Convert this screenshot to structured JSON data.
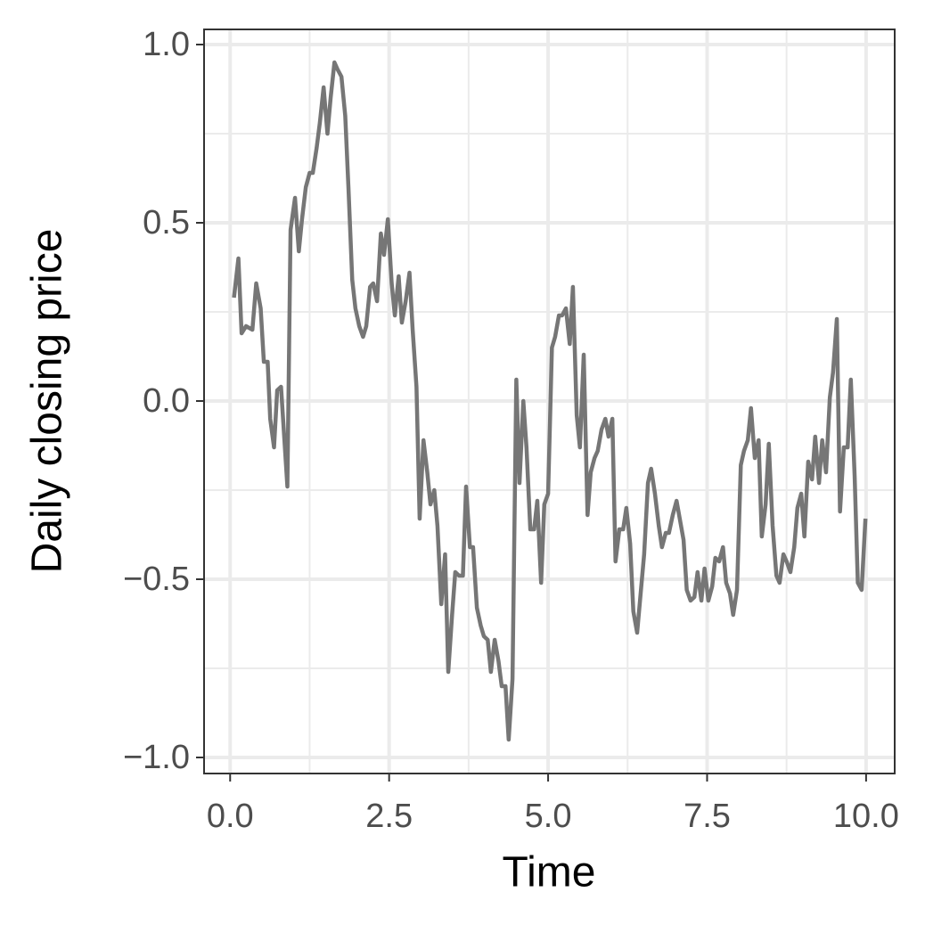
{
  "chart_data": {
    "type": "line",
    "x_label": "Time",
    "y_label": "Daily closing price",
    "color": "#767676",
    "grid": true,
    "minor_grid": true,
    "xlim": [
      -0.41,
      10.45
    ],
    "ylim": [
      -1.045,
      1.0425
    ],
    "xticks": [
      {
        "value": 0,
        "label": "0.0"
      },
      {
        "value": 2.5,
        "label": "2.5"
      },
      {
        "value": 5,
        "label": "5.0"
      },
      {
        "value": 7.5,
        "label": "7.5"
      },
      {
        "value": 10,
        "label": "10.0"
      }
    ],
    "yticks": [
      {
        "value": -1,
        "label": "−1.0"
      },
      {
        "value": -0.5,
        "label": "−0.5"
      },
      {
        "value": 0,
        "label": "0.0"
      },
      {
        "value": 0.5,
        "label": "0.5"
      },
      {
        "value": 1,
        "label": "1.0"
      }
    ],
    "x": [
      0.06,
      0.13,
      0.18,
      0.25,
      0.35,
      0.41,
      0.48,
      0.53,
      0.59,
      0.63,
      0.69,
      0.74,
      0.8,
      0.9,
      0.95,
      1.02,
      1.08,
      1.13,
      1.19,
      1.25,
      1.3,
      1.36,
      1.41,
      1.47,
      1.53,
      1.58,
      1.64,
      1.69,
      1.75,
      1.81,
      1.86,
      1.92,
      1.97,
      2.03,
      2.09,
      2.14,
      2.2,
      2.25,
      2.31,
      2.37,
      2.42,
      2.48,
      2.54,
      2.59,
      2.65,
      2.7,
      2.76,
      2.82,
      2.87,
      2.93,
      2.98,
      3.04,
      3.1,
      3.15,
      3.21,
      3.26,
      3.32,
      3.38,
      3.43,
      3.49,
      3.54,
      3.6,
      3.66,
      3.71,
      3.77,
      3.82,
      3.88,
      3.94,
      3.99,
      4.05,
      4.1,
      4.16,
      4.22,
      4.27,
      4.33,
      4.38,
      4.44,
      4.5,
      4.55,
      4.61,
      4.66,
      4.72,
      4.78,
      4.83,
      4.89,
      4.94,
      5.0,
      5.06,
      5.11,
      5.17,
      5.22,
      5.28,
      5.34,
      5.39,
      5.45,
      5.5,
      5.56,
      5.62,
      5.67,
      5.73,
      5.78,
      5.84,
      5.9,
      5.95,
      6.01,
      6.06,
      6.12,
      6.18,
      6.23,
      6.29,
      6.34,
      6.4,
      6.46,
      6.51,
      6.57,
      6.62,
      6.68,
      6.74,
      6.79,
      6.85,
      6.9,
      6.96,
      7.02,
      7.07,
      7.13,
      7.18,
      7.24,
      7.3,
      7.35,
      7.41,
      7.46,
      7.52,
      7.58,
      7.63,
      7.69,
      7.75,
      7.8,
      7.86,
      7.91,
      7.97,
      8.03,
      8.08,
      8.14,
      8.19,
      8.25,
      8.31,
      8.36,
      8.42,
      8.47,
      8.53,
      8.59,
      8.64,
      8.7,
      8.75,
      8.81,
      8.87,
      8.92,
      8.98,
      9.03,
      9.09,
      9.15,
      9.2,
      9.26,
      9.31,
      9.37,
      9.43,
      9.48,
      9.54,
      9.59,
      9.65,
      9.71,
      9.76,
      9.82,
      9.87,
      9.93,
      9.99
    ],
    "values": [
      0.29,
      0.4,
      0.19,
      0.21,
      0.2,
      0.33,
      0.26,
      0.11,
      0.11,
      -0.05,
      -0.13,
      0.03,
      0.04,
      -0.24,
      0.48,
      0.57,
      0.42,
      0.51,
      0.6,
      0.64,
      0.64,
      0.71,
      0.78,
      0.88,
      0.75,
      0.85,
      0.95,
      0.93,
      0.91,
      0.8,
      0.6,
      0.34,
      0.26,
      0.21,
      0.18,
      0.21,
      0.32,
      0.33,
      0.28,
      0.47,
      0.41,
      0.51,
      0.33,
      0.24,
      0.35,
      0.22,
      0.28,
      0.36,
      0.2,
      0.04,
      -0.33,
      -0.11,
      -0.2,
      -0.29,
      -0.25,
      -0.35,
      -0.57,
      -0.43,
      -0.76,
      -0.6,
      -0.48,
      -0.49,
      -0.49,
      -0.24,
      -0.41,
      -0.41,
      -0.58,
      -0.63,
      -0.66,
      -0.67,
      -0.76,
      -0.67,
      -0.73,
      -0.8,
      -0.8,
      -0.95,
      -0.78,
      0.06,
      -0.23,
      0.0,
      -0.13,
      -0.36,
      -0.36,
      -0.28,
      -0.51,
      -0.29,
      -0.26,
      0.15,
      0.18,
      0.24,
      0.24,
      0.26,
      0.16,
      0.32,
      -0.04,
      -0.13,
      0.13,
      -0.32,
      -0.2,
      -0.16,
      -0.14,
      -0.08,
      -0.05,
      -0.1,
      -0.05,
      -0.45,
      -0.36,
      -0.36,
      -0.3,
      -0.4,
      -0.59,
      -0.65,
      -0.53,
      -0.43,
      -0.23,
      -0.19,
      -0.26,
      -0.35,
      -0.41,
      -0.37,
      -0.37,
      -0.32,
      -0.28,
      -0.33,
      -0.39,
      -0.53,
      -0.56,
      -0.55,
      -0.48,
      -0.56,
      -0.47,
      -0.56,
      -0.52,
      -0.44,
      -0.45,
      -0.41,
      -0.51,
      -0.54,
      -0.6,
      -0.53,
      -0.18,
      -0.14,
      -0.11,
      -0.02,
      -0.16,
      -0.11,
      -0.38,
      -0.29,
      -0.12,
      -0.35,
      -0.49,
      -0.51,
      -0.43,
      -0.45,
      -0.48,
      -0.41,
      -0.3,
      -0.26,
      -0.38,
      -0.17,
      -0.22,
      -0.1,
      -0.23,
      -0.11,
      -0.2,
      0.01,
      0.08,
      0.23,
      -0.31,
      -0.13,
      -0.13,
      0.06,
      -0.21,
      -0.51,
      -0.53,
      -0.33
    ]
  }
}
